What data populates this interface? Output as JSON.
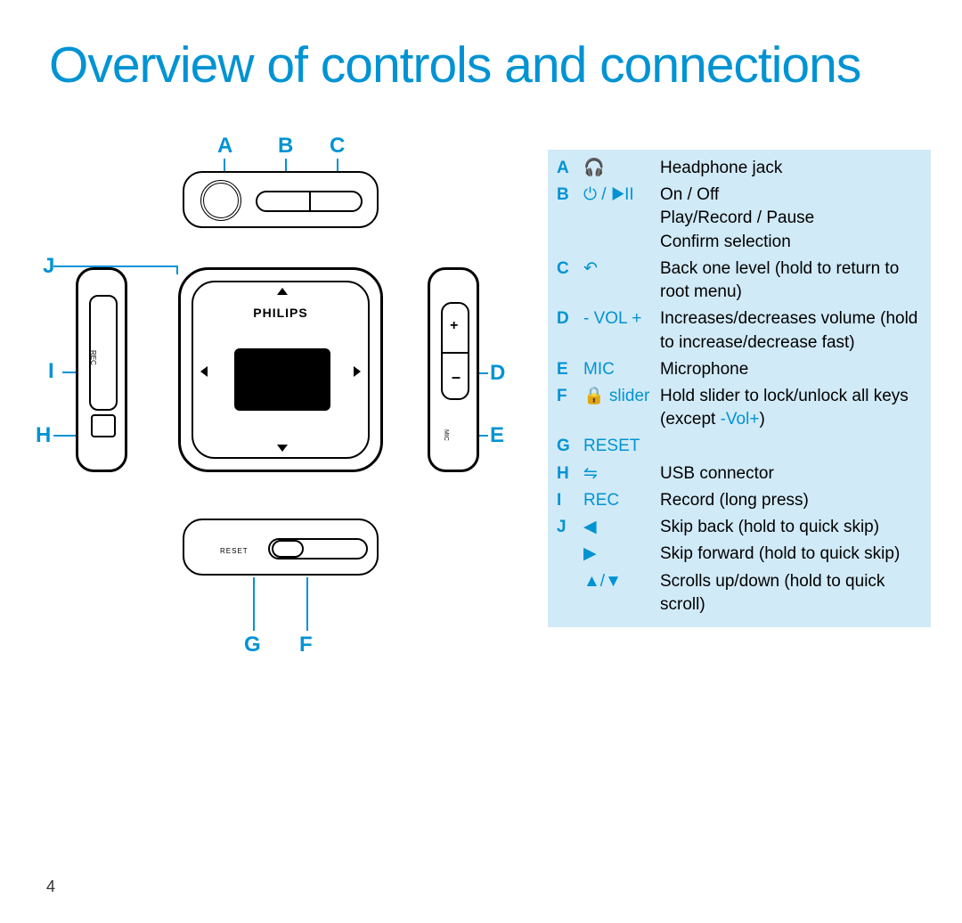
{
  "title": {
    "text": "Overview of controls and connections",
    "color": "#0093d3"
  },
  "page_number": "4",
  "diagram": {
    "accent_color": "#0093d3",
    "brand": "PHILIPS",
    "rec_label": "REC",
    "mic_label": "MIC",
    "reset_label": "RESET",
    "plus": "+",
    "minus": "–",
    "labels": {
      "A": "A",
      "B": "B",
      "C": "C",
      "D": "D",
      "E": "E",
      "F": "F",
      "G": "G",
      "H": "H",
      "I": "I",
      "J": "J"
    }
  },
  "legend": {
    "background_color": "#d1eaf7",
    "letter_color": "#0093d3",
    "rows": [
      {
        "letter": "A",
        "icon": "🎧",
        "desc": "Headphone jack"
      },
      {
        "letter": "B",
        "icon": "⏻ / ▶II",
        "desc": "On / Off\nPlay/Record / Pause\nConfirm selection"
      },
      {
        "letter": "C",
        "icon": "↶",
        "desc": "Back one level (hold to return to root menu)"
      },
      {
        "letter": "D",
        "icon": "- VOL +",
        "desc": "Increases/decreases volume (hold to increase/decrease fast)"
      },
      {
        "letter": "E",
        "icon": "MIC",
        "desc": "Microphone"
      },
      {
        "letter": "F",
        "icon": "🔒 slider",
        "desc_pre": "Hold slider to lock/unlock all keys (except ",
        "desc_accent": "-Vol+",
        "desc_post": ")"
      },
      {
        "letter": "G",
        "icon": "RESET",
        "desc": ""
      },
      {
        "letter": "H",
        "icon": "⇋",
        "desc": "USB connector"
      },
      {
        "letter": "I",
        "icon": "REC",
        "desc": "Record (long press)"
      },
      {
        "letter": "J",
        "icon": "◀",
        "desc": "Skip back (hold to quick skip)"
      },
      {
        "letter": "",
        "icon": "▶",
        "desc": "Skip forward (hold to quick skip)"
      },
      {
        "letter": "",
        "icon": "▲/▼",
        "desc": "Scrolls up/down (hold to quick scroll)"
      }
    ]
  }
}
